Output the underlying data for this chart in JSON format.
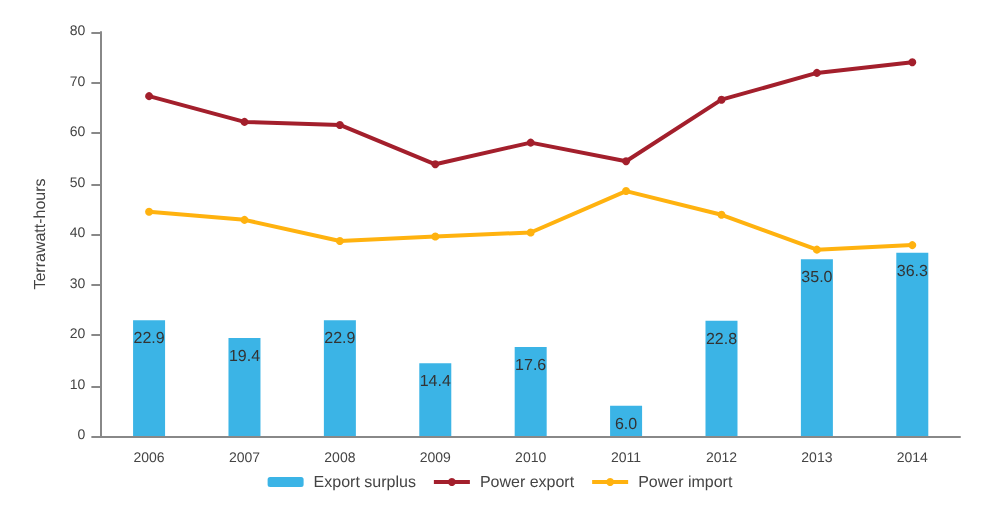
{
  "chart_data": {
    "type": "bar",
    "ylabel": "Terrawatt-hours",
    "categories": [
      "2006",
      "2007",
      "2008",
      "2009",
      "2010",
      "2011",
      "2012",
      "2013",
      "2014"
    ],
    "series": [
      {
        "name": "Export surplus",
        "color": "#3bb4e6",
        "values": [
          22.9,
          19.4,
          22.9,
          14.4,
          17.6,
          6.0,
          22.8,
          35.0,
          36.3
        ],
        "value_labels": [
          "22.9",
          "19.4",
          "22.9",
          "14.4",
          "17.6",
          "6.0",
          "22.8",
          "35.0",
          "36.3"
        ]
      },
      {
        "name": "Power export",
        "type": "line",
        "color": "#a31f2c",
        "values": [
          67.3,
          62.2,
          61.6,
          53.8,
          58.1,
          54.4,
          66.6,
          71.9,
          74.0
        ]
      },
      {
        "name": "Power import",
        "type": "line",
        "color": "#ffb20f",
        "values": [
          44.4,
          42.8,
          38.6,
          39.5,
          40.3,
          48.5,
          43.8,
          36.9,
          37.8
        ]
      }
    ],
    "ylim": [
      0,
      80
    ],
    "yticks": [
      0,
      10,
      20,
      30,
      40,
      50,
      60,
      70,
      80
    ],
    "grid": false,
    "legend": "bottom",
    "marker": "circle"
  }
}
